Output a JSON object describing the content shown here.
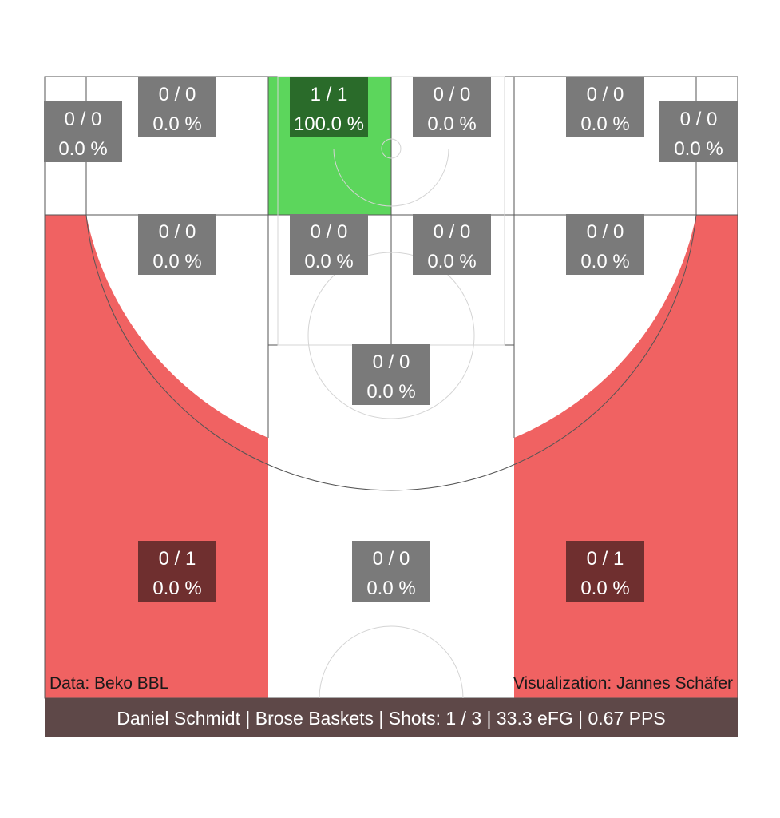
{
  "chart_data": {
    "type": "heatmap",
    "subtype": "basketball-shot-chart",
    "colors": {
      "cold_fill": "#f06262",
      "hot_fill": "#5cd65c",
      "neutral_fill": "#ffffff",
      "box_empty": "#7a7a7a",
      "box_cold": "#6f2f2f",
      "box_hot": "#2a6b2a",
      "footer_bg": "#5e4848"
    },
    "zones": [
      {
        "id": "corner-left-3",
        "made": 0,
        "attempts": 0,
        "label": "0 / 0",
        "pct_label": "0.0 %",
        "heat": "none"
      },
      {
        "id": "wing-left-3",
        "made": 0,
        "attempts": 0,
        "label": "0 / 0",
        "pct_label": "0.0 %",
        "heat": "none"
      },
      {
        "id": "paint-left-near",
        "made": 1,
        "attempts": 1,
        "label": "1 / 1",
        "pct_label": "100.0 %",
        "heat": "hot"
      },
      {
        "id": "paint-right-near",
        "made": 0,
        "attempts": 0,
        "label": "0 / 0",
        "pct_label": "0.0 %",
        "heat": "none"
      },
      {
        "id": "wing-right-3",
        "made": 0,
        "attempts": 0,
        "label": "0 / 0",
        "pct_label": "0.0 %",
        "heat": "none"
      },
      {
        "id": "corner-right-3",
        "made": 0,
        "attempts": 0,
        "label": "0 / 0",
        "pct_label": "0.0 %",
        "heat": "none"
      },
      {
        "id": "midrange-left",
        "made": 0,
        "attempts": 0,
        "label": "0 / 0",
        "pct_label": "0.0 %",
        "heat": "none"
      },
      {
        "id": "paint-left-far",
        "made": 0,
        "attempts": 0,
        "label": "0 / 0",
        "pct_label": "0.0 %",
        "heat": "none"
      },
      {
        "id": "paint-right-far",
        "made": 0,
        "attempts": 0,
        "label": "0 / 0",
        "pct_label": "0.0 %",
        "heat": "none"
      },
      {
        "id": "midrange-right",
        "made": 0,
        "attempts": 0,
        "label": "0 / 0",
        "pct_label": "0.0 %",
        "heat": "none"
      },
      {
        "id": "midrange-top",
        "made": 0,
        "attempts": 0,
        "label": "0 / 0",
        "pct_label": "0.0 %",
        "heat": "none"
      },
      {
        "id": "three-left",
        "made": 0,
        "attempts": 1,
        "label": "0 / 1",
        "pct_label": "0.0 %",
        "heat": "cold"
      },
      {
        "id": "three-top",
        "made": 0,
        "attempts": 0,
        "label": "0 / 0",
        "pct_label": "0.0 %",
        "heat": "none"
      },
      {
        "id": "three-right",
        "made": 0,
        "attempts": 1,
        "label": "0 / 1",
        "pct_label": "0.0 %",
        "heat": "cold"
      }
    ],
    "credits": {
      "data_source": "Data: Beko BBL",
      "visualization": "Visualization: Jannes Schäfer"
    },
    "footer": "Daniel Schmidt | Brose Baskets | Shots: 1 / 3 | 33.3 eFG | 0.67 PPS"
  }
}
